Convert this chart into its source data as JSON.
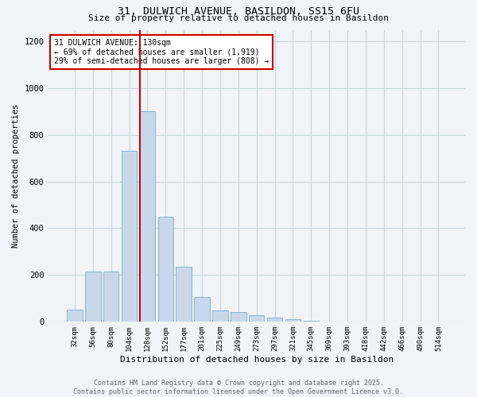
{
  "title_line1": "31, DULWICH AVENUE, BASILDON, SS15 6FU",
  "title_line2": "Size of property relative to detached houses in Basildon",
  "xlabel": "Distribution of detached houses by size in Basildon",
  "ylabel": "Number of detached properties",
  "categories": [
    "32sqm",
    "56sqm",
    "80sqm",
    "104sqm",
    "128sqm",
    "152sqm",
    "177sqm",
    "201sqm",
    "225sqm",
    "249sqm",
    "273sqm",
    "297sqm",
    "321sqm",
    "345sqm",
    "369sqm",
    "393sqm",
    "418sqm",
    "442sqm",
    "466sqm",
    "490sqm",
    "514sqm"
  ],
  "values": [
    50,
    215,
    215,
    730,
    900,
    450,
    235,
    105,
    48,
    40,
    28,
    18,
    10,
    2,
    1,
    0,
    0,
    0,
    0,
    0,
    0
  ],
  "bar_color": "#c8d8ea",
  "bar_edge_color": "#7baac8",
  "reference_line_color": "#cc0000",
  "annotation_text": "31 DULWICH AVENUE: 130sqm\n← 69% of detached houses are smaller (1,919)\n29% of semi-detached houses are larger (808) →",
  "ylim": [
    0,
    1250
  ],
  "yticks": [
    0,
    200,
    400,
    600,
    800,
    1000,
    1200
  ],
  "footer_line1": "Contains HM Land Registry data © Crown copyright and database right 2025.",
  "footer_line2": "Contains public sector information licensed under the Open Government Licence v3.0.",
  "background_color": "#f0f4f8",
  "grid_color": "#c8d4de"
}
